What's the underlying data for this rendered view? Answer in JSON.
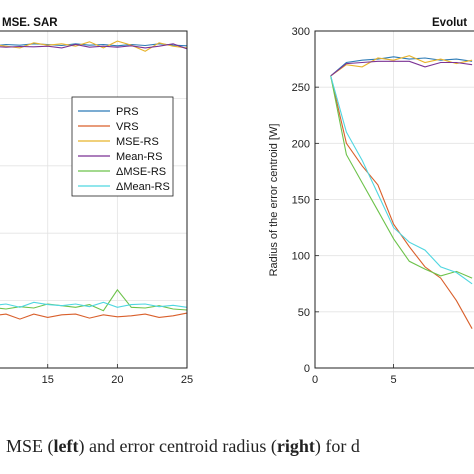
{
  "chart_data": [
    {
      "type": "line",
      "title": "MSE. SAR",
      "xlabel": "",
      "ylabel": "",
      "xlim": [
        11.5,
        25
      ],
      "ylim": [
        0,
        1
      ],
      "x_ticks": [
        "15",
        "20",
        "25"
      ],
      "grid": true,
      "legend_position": "center-right",
      "x": [
        11,
        12,
        13,
        14,
        15,
        16,
        17,
        18,
        19,
        20,
        21,
        22,
        23,
        24,
        25
      ],
      "series": [
        {
          "name": "PRS",
          "color": "#2c7bb6",
          "values": [
            0.955,
            0.96,
            0.958,
            0.962,
            0.96,
            0.957,
            0.962,
            0.958,
            0.96,
            0.956,
            0.96,
            0.957,
            0.962,
            0.958,
            0.956
          ]
        },
        {
          "name": "VRS",
          "color": "#d95f2b",
          "values": [
            0.155,
            0.16,
            0.145,
            0.16,
            0.15,
            0.158,
            0.16,
            0.148,
            0.158,
            0.152,
            0.155,
            0.16,
            0.15,
            0.155,
            0.163
          ]
        },
        {
          "name": "MSE-RS",
          "color": "#e8b32b",
          "values": [
            0.96,
            0.955,
            0.95,
            0.965,
            0.958,
            0.962,
            0.955,
            0.968,
            0.95,
            0.97,
            0.958,
            0.94,
            0.965,
            0.955,
            0.95
          ]
        },
        {
          "name": "Mean-RS",
          "color": "#7b3294",
          "values": [
            0.955,
            0.952,
            0.954,
            0.953,
            0.955,
            0.95,
            0.96,
            0.952,
            0.955,
            0.952,
            0.956,
            0.95,
            0.955,
            0.962,
            0.947
          ]
        },
        {
          "name": "ΔMSE-RS",
          "color": "#6cc24a",
          "values": [
            0.18,
            0.175,
            0.182,
            0.178,
            0.19,
            0.185,
            0.18,
            0.188,
            0.17,
            0.232,
            0.18,
            0.178,
            0.185,
            0.175,
            0.172
          ]
        },
        {
          "name": "ΔMean-RS",
          "color": "#4fd6e0",
          "values": [
            0.185,
            0.19,
            0.18,
            0.195,
            0.188,
            0.185,
            0.19,
            0.182,
            0.195,
            0.18,
            0.188,
            0.19,
            0.182,
            0.186,
            0.18
          ]
        }
      ]
    },
    {
      "type": "line",
      "title": "Evolut",
      "xlabel": "",
      "ylabel": "Radius of the error centroid [W]",
      "xlim": [
        0,
        10.5
      ],
      "ylim": [
        0,
        300
      ],
      "x_ticks": [
        "0",
        "5"
      ],
      "y_ticks": [
        "0",
        "50",
        "100",
        "150",
        "200",
        "250",
        "300"
      ],
      "grid": true,
      "x": [
        1,
        2,
        3,
        4,
        5,
        6,
        7,
        8,
        9,
        10
      ],
      "series": [
        {
          "color": "#2c7bb6",
          "values": [
            260,
            272,
            274,
            275,
            277,
            275,
            276,
            274,
            275,
            273
          ]
        },
        {
          "color": "#e8b32b",
          "values": [
            260,
            270,
            268,
            276,
            274,
            278,
            272,
            275,
            271,
            274
          ]
        },
        {
          "color": "#7b3294",
          "values": [
            260,
            271,
            272,
            273,
            273,
            273,
            268,
            272,
            272,
            270
          ]
        },
        {
          "color": "#d95f2b",
          "values": [
            260,
            200,
            180,
            163,
            128,
            108,
            90,
            80,
            60,
            35
          ]
        },
        {
          "color": "#6cc24a",
          "values": [
            260,
            190,
            165,
            140,
            115,
            95,
            88,
            82,
            86,
            80
          ]
        },
        {
          "color": "#4fd6e0",
          "values": [
            260,
            210,
            185,
            155,
            125,
            112,
            105,
            90,
            85,
            75
          ]
        }
      ]
    }
  ],
  "caption": {
    "part1": "MSE (",
    "left": "left",
    "part2": ") and error centroid radius (",
    "right": "right",
    "part3": ") for d"
  }
}
